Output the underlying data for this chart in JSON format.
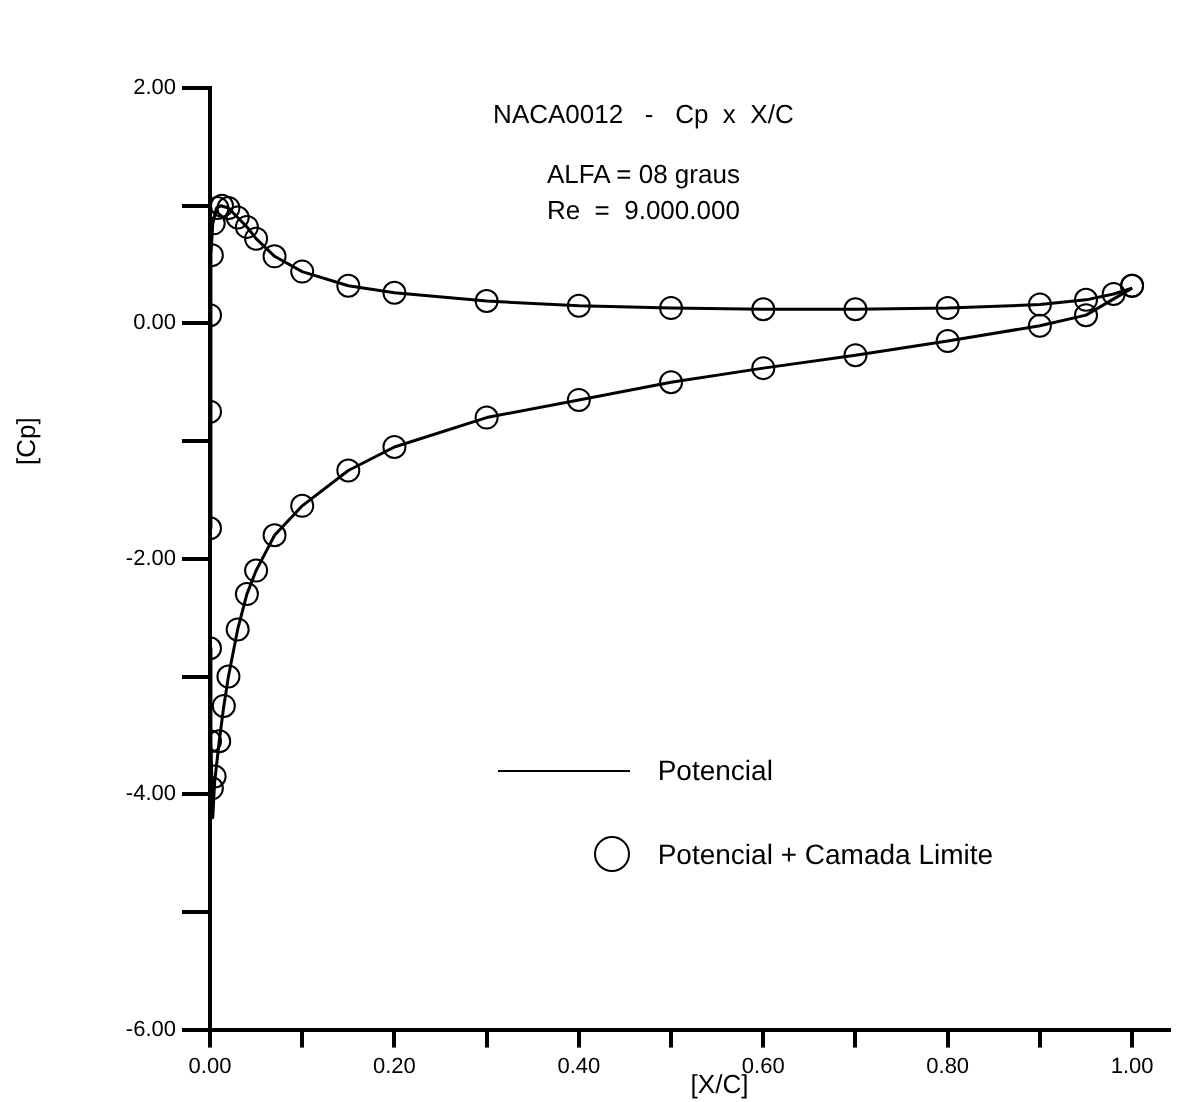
{
  "chart_data": {
    "type": "line",
    "title": "NACA0012   -   Cp  x  X/C",
    "annotations": [
      "ALFA = 08 graus",
      "Re  =  9.000.000"
    ],
    "xlabel": "[X/C]",
    "ylabel": "[Cp]",
    "xlim": [
      0,
      1.04
    ],
    "ylim": [
      -6,
      2
    ],
    "xticks": [
      {
        "value": 0,
        "label": "0.00"
      },
      {
        "value": 0.1,
        "label": null
      },
      {
        "value": 0.2,
        "label": "0.20"
      },
      {
        "value": 0.3,
        "label": null
      },
      {
        "value": 0.4,
        "label": "0.40"
      },
      {
        "value": 0.5,
        "label": null
      },
      {
        "value": 0.6,
        "label": "0.60"
      },
      {
        "value": 0.7,
        "label": null
      },
      {
        "value": 0.8,
        "label": "0.80"
      },
      {
        "value": 0.9,
        "label": null
      },
      {
        "value": 1,
        "label": "1.00"
      }
    ],
    "yticks": [
      {
        "value": -6,
        "label": "-6.00"
      },
      {
        "value": -5,
        "label": null
      },
      {
        "value": -4,
        "label": "-4.00"
      },
      {
        "value": -3,
        "label": null
      },
      {
        "value": -2,
        "label": "-2.00"
      },
      {
        "value": -1,
        "label": null
      },
      {
        "value": 0,
        "label": "0.00"
      },
      {
        "value": 1,
        "label": null
      },
      {
        "value": 2,
        "label": "2.00"
      }
    ],
    "grid": false,
    "legend": "bottom",
    "series": [
      {
        "name": "Potencial",
        "type": "line",
        "color": "#000000",
        "marker": "none",
        "line_style": "solid",
        "x": [
          0,
          0.001,
          0.003,
          0.005,
          0.01,
          0.015,
          0.02,
          0.03,
          0.04,
          0.05,
          0.07,
          0.1,
          0.15,
          0.2,
          0.3,
          0.4,
          0.5,
          0.6,
          0.7,
          0.8,
          0.9,
          0.95,
          1
        ],
        "values": [
          -2.76,
          -3.55,
          -4.2,
          -3.9,
          -3.55,
          -3.25,
          -3.0,
          -2.6,
          -2.3,
          -2.1,
          -1.8,
          -1.55,
          -1.25,
          -1.05,
          -0.8,
          -0.65,
          -0.5,
          -0.38,
          -0.27,
          -0.15,
          -0.02,
          0.07,
          0.3
        ]
      },
      {
        "type": "line",
        "color": "#000000",
        "marker": "none",
        "line_style": "solid",
        "x": [
          0,
          0.001,
          0.003,
          0.007,
          0.012,
          0.02,
          0.03,
          0.04,
          0.05,
          0.07,
          0.1,
          0.15,
          0.2,
          0.3,
          0.4,
          0.5,
          0.6,
          0.7,
          0.8,
          0.9,
          0.95,
          0.98,
          1
        ],
        "values": [
          -1.74,
          0.58,
          0.85,
          0.98,
          1.0,
          0.98,
          0.9,
          0.82,
          0.72,
          0.57,
          0.44,
          0.32,
          0.26,
          0.19,
          0.15,
          0.13,
          0.12,
          0.12,
          0.13,
          0.16,
          0.2,
          0.25,
          0.3
        ]
      },
      {
        "name": "Potencial + Camada Limite",
        "type": "scatter",
        "color": "#000000",
        "marker": "circle",
        "x": [
          1,
          0.95,
          0.9,
          0.8,
          0.7,
          0.6,
          0.5,
          0.4,
          0.3,
          0.2,
          0.15,
          0.1,
          0.07,
          0.05,
          0.04,
          0.03,
          0.02,
          0.015,
          0.01,
          0.005,
          0.002,
          0,
          0,
          0,
          0,
          0,
          0.002,
          0.004,
          0.008,
          0.013,
          0.02,
          0.03,
          0.04,
          0.05,
          0.07,
          0.1,
          0.15,
          0.2,
          0.3,
          0.4,
          0.5,
          0.6,
          0.7,
          0.8,
          0.9,
          0.95,
          0.98,
          1
        ],
        "values": [
          0.32,
          0.07,
          -0.02,
          -0.15,
          -0.27,
          -0.38,
          -0.5,
          -0.65,
          -0.8,
          -1.05,
          -1.25,
          -1.55,
          -1.8,
          -2.1,
          -2.3,
          -2.6,
          -3.0,
          -3.25,
          -3.55,
          -3.85,
          -3.95,
          -3.55,
          -2.76,
          -1.74,
          -0.75,
          0.07,
          0.58,
          0.85,
          0.98,
          1.0,
          0.98,
          0.9,
          0.82,
          0.72,
          0.57,
          0.44,
          0.32,
          0.26,
          0.19,
          0.15,
          0.13,
          0.12,
          0.12,
          0.13,
          0.16,
          0.2,
          0.25,
          0.32
        ]
      }
    ]
  }
}
